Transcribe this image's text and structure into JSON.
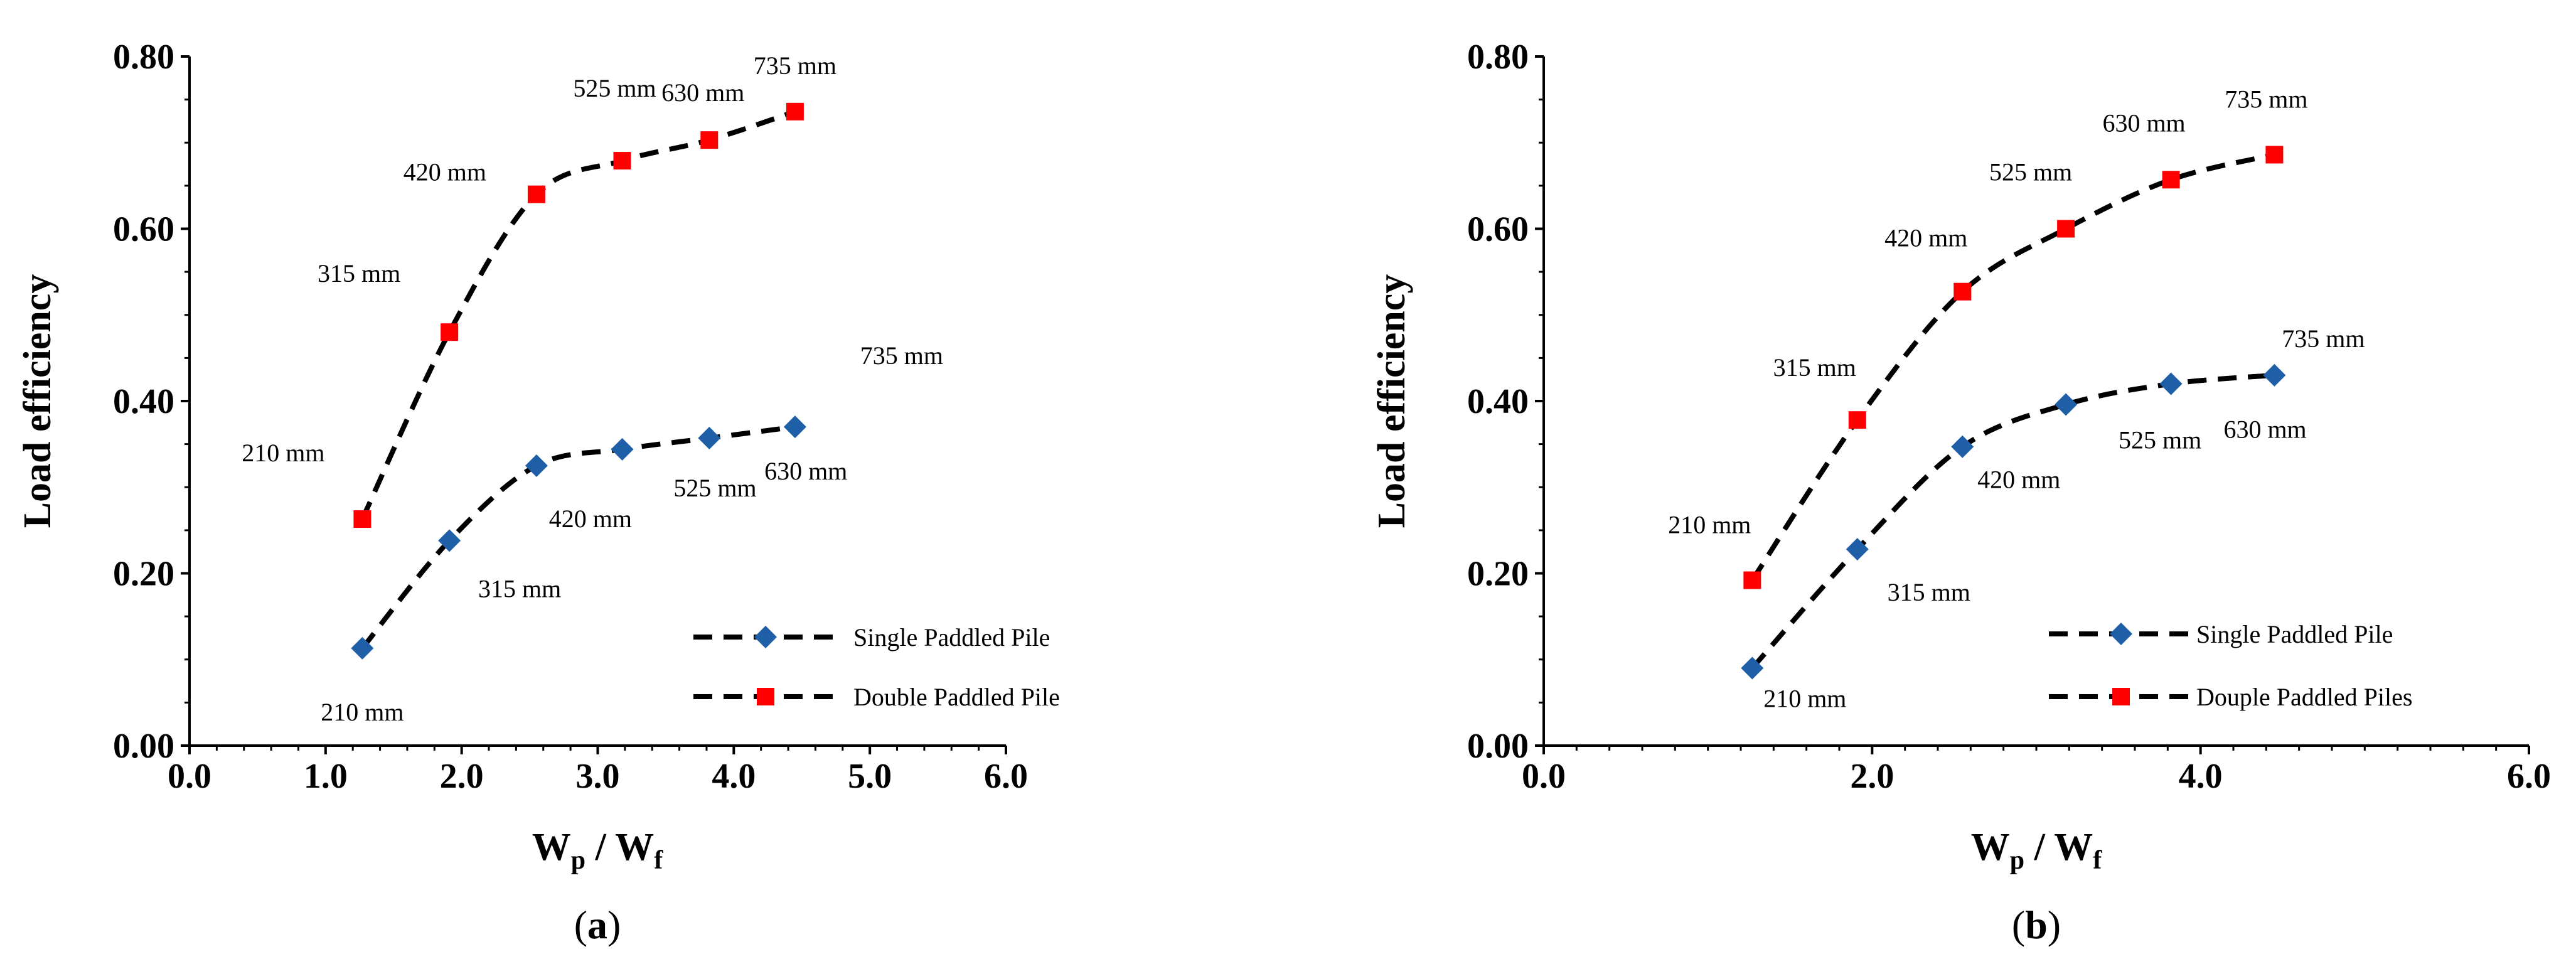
{
  "chart_data": [
    {
      "type": "line",
      "panel_label": {
        "open": "(",
        "letter": "a",
        "close": ")"
      },
      "xlabel": "Wp / Wf",
      "xlabel_parts": {
        "main1": "W",
        "sub1": "p",
        "sep": " / ",
        "main2": "W",
        "sub2": "f"
      },
      "ylabel": "Load efficiency",
      "xlim": [
        0,
        6
      ],
      "ylim": [
        0,
        0.8
      ],
      "x_ticks": [
        "0.0",
        "1.0",
        "2.0",
        "3.0",
        "4.0",
        "5.0",
        "6.0"
      ],
      "y_ticks": [
        "0.00",
        "0.20",
        "0.40",
        "0.60",
        "0.80"
      ],
      "legend_position": "bottom-right",
      "series": [
        {
          "name": "Single Paddled Pile",
          "color": "#1f5fa8",
          "marker": "diamond",
          "x": [
            1.27,
            1.91,
            2.55,
            3.18,
            3.82,
            4.45
          ],
          "y": [
            0.113,
            0.238,
            0.325,
            0.344,
            0.357,
            0.37
          ],
          "labels": [
            "210 mm",
            "315 mm",
            "420 mm",
            "525 mm",
            "630 mm",
            "735 mm"
          ]
        },
        {
          "name": "Double Paddled Pile",
          "color": "#ff0000",
          "marker": "square",
          "x": [
            1.27,
            1.91,
            2.55,
            3.18,
            3.82,
            4.45
          ],
          "y": [
            0.263,
            0.48,
            0.64,
            0.679,
            0.703,
            0.736
          ],
          "labels": [
            "210 mm",
            "315 mm",
            "420 mm",
            "525 mm",
            "630 mm",
            "735 mm"
          ]
        }
      ]
    },
    {
      "type": "line",
      "panel_label": {
        "open": "(",
        "letter": "b",
        "close": ")"
      },
      "xlabel": "Wp / Wf",
      "xlabel_parts": {
        "main1": "W",
        "sub1": "p",
        "sep": " / ",
        "main2": "W",
        "sub2": "f"
      },
      "ylabel": "Load efficiency",
      "xlim": [
        0,
        6
      ],
      "ylim": [
        0,
        0.8
      ],
      "x_ticks": [
        "0.0",
        "2.0",
        "4.0",
        "6.0"
      ],
      "y_ticks": [
        "0.00",
        "0.20",
        "0.40",
        "0.60",
        "0.80"
      ],
      "legend_position": "bottom-right",
      "series": [
        {
          "name": "Single Paddled Pile",
          "color": "#1f5fa8",
          "marker": "diamond",
          "x": [
            1.27,
            1.91,
            2.55,
            3.18,
            3.82,
            4.45
          ],
          "y": [
            0.09,
            0.228,
            0.347,
            0.396,
            0.42,
            0.43
          ],
          "labels": [
            "210 mm",
            "315 mm",
            "420 mm",
            "525 mm",
            "630 mm",
            "735 mm"
          ]
        },
        {
          "name": "Douple Paddled Piles",
          "color": "#ff0000",
          "marker": "square",
          "x": [
            1.27,
            1.91,
            2.55,
            3.18,
            3.82,
            4.45
          ],
          "y": [
            0.192,
            0.378,
            0.527,
            0.6,
            0.657,
            0.686
          ],
          "labels": [
            "210 mm",
            "315 mm",
            "420 mm",
            "525 mm",
            "630 mm",
            "735 mm"
          ]
        }
      ]
    }
  ]
}
